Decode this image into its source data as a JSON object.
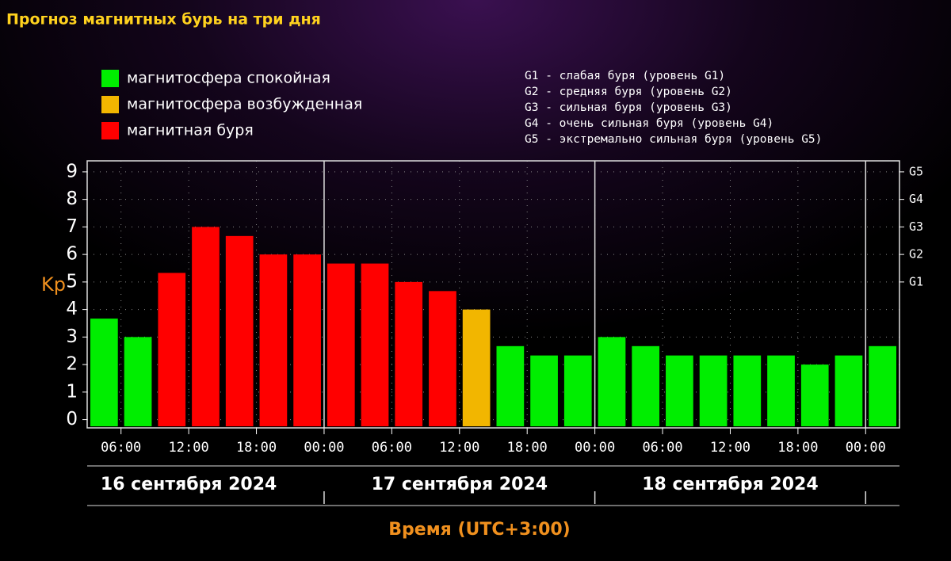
{
  "chart_data": {
    "type": "bar",
    "title": "Прогноз магнитных бурь на три дня",
    "legend": [
      {
        "name": "магнитосфера спокойная",
        "color": "#00ee00"
      },
      {
        "name": "магнитосфера возбужденная",
        "color": "#f2b600"
      },
      {
        "name": "магнитная буря",
        "color": "#ff0000"
      }
    ],
    "levels_legend": [
      "G1 - слабая буря (уровень G1)",
      "G2 - средняя буря (уровень G2)",
      "G3 - сильная буря (уровень G3)",
      "G4 - очень сильная буря (уровень G4)",
      "G5 - экстремально сильная буря (уровень G5)"
    ],
    "y_label": "Kp",
    "x_label": "Время (UTC+3:00)",
    "x": [
      3,
      6,
      9,
      12,
      15,
      18,
      21,
      24,
      27,
      30,
      33,
      36,
      39,
      42,
      45,
      48,
      51,
      54,
      57,
      60,
      63,
      66,
      69,
      72
    ],
    "values": [
      3.67,
      3.0,
      5.33,
      7.0,
      6.67,
      6.0,
      6.0,
      5.67,
      5.67,
      5.0,
      4.67,
      4.0,
      2.67,
      2.33,
      2.33,
      3.0,
      2.67,
      2.33,
      2.33,
      2.33,
      2.33,
      2.0,
      2.33,
      2.67
    ],
    "colors": [
      "#00ee00",
      "#00ee00",
      "#ff0000",
      "#ff0000",
      "#ff0000",
      "#ff0000",
      "#ff0000",
      "#ff0000",
      "#ff0000",
      "#ff0000",
      "#ff0000",
      "#f2b600",
      "#00ee00",
      "#00ee00",
      "#00ee00",
      "#00ee00",
      "#00ee00",
      "#00ee00",
      "#00ee00",
      "#00ee00",
      "#00ee00",
      "#00ee00",
      "#00ee00",
      "#00ee00"
    ],
    "xlim": [
      3,
      75
    ],
    "xticks": [
      {
        "value": 6,
        "label": "06:00"
      },
      {
        "value": 12,
        "label": "12:00"
      },
      {
        "value": 18,
        "label": "18:00"
      },
      {
        "value": 24,
        "label": "00:00"
      },
      {
        "value": 30,
        "label": "06:00"
      },
      {
        "value": 36,
        "label": "12:00"
      },
      {
        "value": 42,
        "label": "18:00"
      },
      {
        "value": 48,
        "label": "00:00"
      },
      {
        "value": 54,
        "label": "06:00"
      },
      {
        "value": 60,
        "label": "12:00"
      },
      {
        "value": 66,
        "label": "18:00"
      },
      {
        "value": 72,
        "label": "00:00"
      }
    ],
    "days": [
      "16 сентября 2024",
      "17 сентября 2024",
      "18 сентября 2024"
    ],
    "ylim": [
      -0.3,
      9.4
    ],
    "yticks": [
      0,
      1,
      2,
      3,
      4,
      5,
      6,
      7,
      8,
      9
    ],
    "y2lim": [
      -0.3,
      9.4
    ],
    "y2ticks": [
      {
        "value": 5,
        "label": "G1"
      },
      {
        "value": 6,
        "label": "G2"
      },
      {
        "value": 7,
        "label": "G3"
      },
      {
        "value": 8,
        "label": "G4"
      },
      {
        "value": 9,
        "label": "G5"
      }
    ],
    "grid": true
  }
}
